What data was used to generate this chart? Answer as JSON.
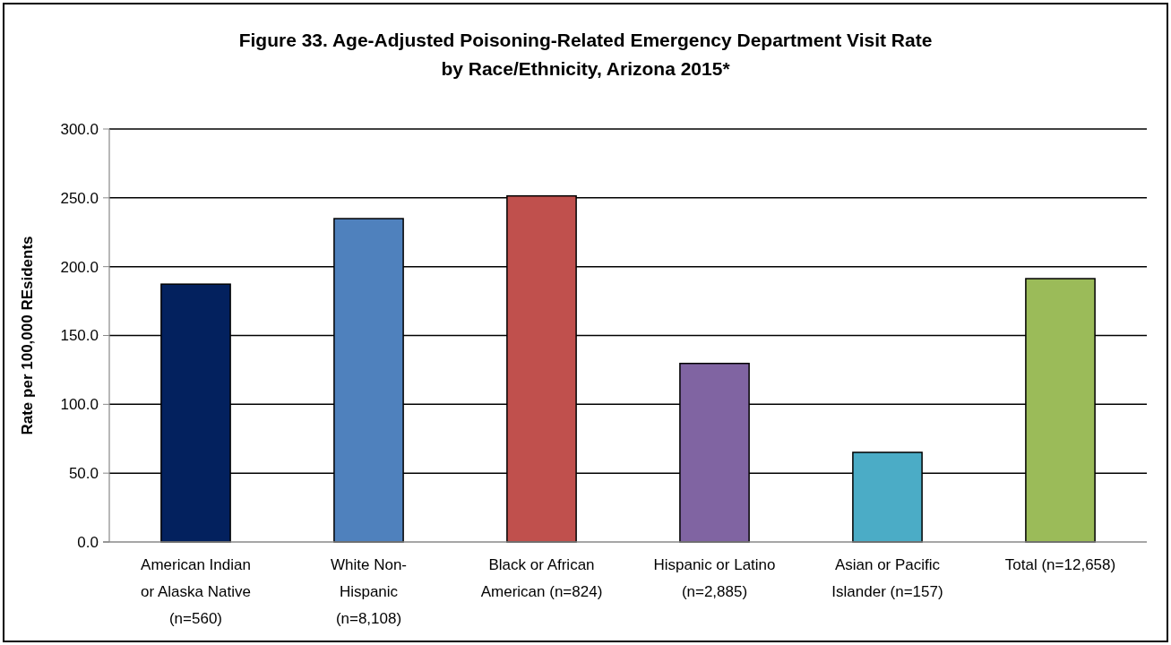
{
  "chart_data": {
    "type": "bar",
    "title": "Figure 33. Age-Adjusted Poisoning-Related Emergency Department Visit Rate by Race/Ethnicity, Arizona 2015*",
    "ylabel": "Rate per 100,000 REsidents",
    "categories": [
      "American Indian or Alaska Native (n=560)",
      "White Non-Hispanic (n=8,108)",
      "Black or African American (n=824)",
      "Hispanic or Latino (n=2,885)",
      "Asian or Pacific Islander (n=157)",
      "Total (n=12,658)"
    ],
    "values": [
      187.3,
      234.9,
      251.4,
      129.7,
      65.1,
      191.3
    ],
    "colors": [
      "#03215e",
      "#4f81bd",
      "#c0504d",
      "#8064a2",
      "#4bacc6",
      "#9bbb59"
    ],
    "ylim": [
      0,
      300
    ],
    "yticks": [
      {
        "value": 0,
        "label": "0.0"
      },
      {
        "value": 50,
        "label": "50.0"
      },
      {
        "value": 100,
        "label": "100.0"
      },
      {
        "value": 150,
        "label": "150.0"
      },
      {
        "value": 200,
        "label": "200.0"
      },
      {
        "value": 250,
        "label": "250.0"
      },
      {
        "value": 300,
        "label": "300.0"
      }
    ],
    "grid": "y"
  }
}
